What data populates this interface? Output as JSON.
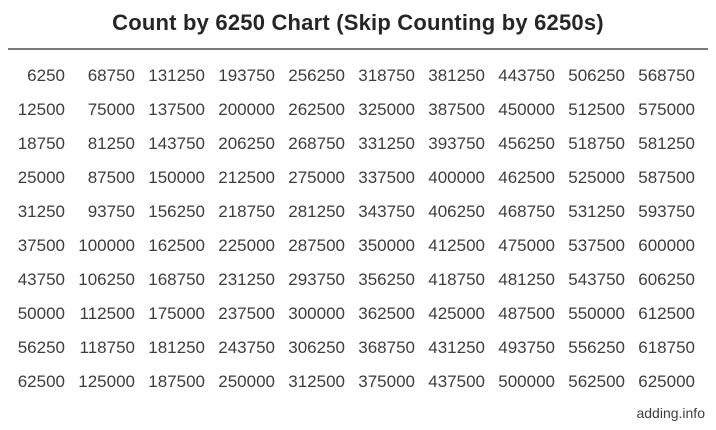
{
  "page": {
    "title": "Count by 6250 Chart (Skip Counting by 6250s)",
    "footer": "adding.info"
  },
  "colors": {
    "background": "#ffffff",
    "title_text": "#262626",
    "number_text": "#3d3d3d",
    "divider": "#7a7a7a",
    "footer_text": "#3d3d3d"
  },
  "chart_data": {
    "type": "table",
    "title": "Count by 6250 Chart (Skip Counting by 6250s)",
    "step": 6250,
    "start": 6250,
    "end": 625000,
    "order": "column-major",
    "grid": {
      "rows": 10,
      "columns": 10
    },
    "rows": [
      [
        6250,
        68750,
        131250,
        193750,
        256250,
        318750,
        381250,
        443750,
        506250,
        568750
      ],
      [
        12500,
        75000,
        137500,
        200000,
        262500,
        325000,
        387500,
        450000,
        512500,
        575000
      ],
      [
        18750,
        81250,
        143750,
        206250,
        268750,
        331250,
        393750,
        456250,
        518750,
        581250
      ],
      [
        25000,
        87500,
        150000,
        212500,
        275000,
        337500,
        400000,
        462500,
        525000,
        587500
      ],
      [
        31250,
        93750,
        156250,
        218750,
        281250,
        343750,
        406250,
        468750,
        531250,
        593750
      ],
      [
        37500,
        100000,
        162500,
        225000,
        287500,
        350000,
        412500,
        475000,
        537500,
        600000
      ],
      [
        43750,
        106250,
        168750,
        231250,
        293750,
        356250,
        418750,
        481250,
        543750,
        606250
      ],
      [
        50000,
        112500,
        175000,
        237500,
        300000,
        362500,
        425000,
        487500,
        550000,
        612500
      ],
      [
        56250,
        118750,
        181250,
        243750,
        306250,
        368750,
        431250,
        493750,
        556250,
        618750
      ],
      [
        62500,
        125000,
        187500,
        250000,
        312500,
        375000,
        437500,
        500000,
        562500,
        625000
      ]
    ]
  }
}
